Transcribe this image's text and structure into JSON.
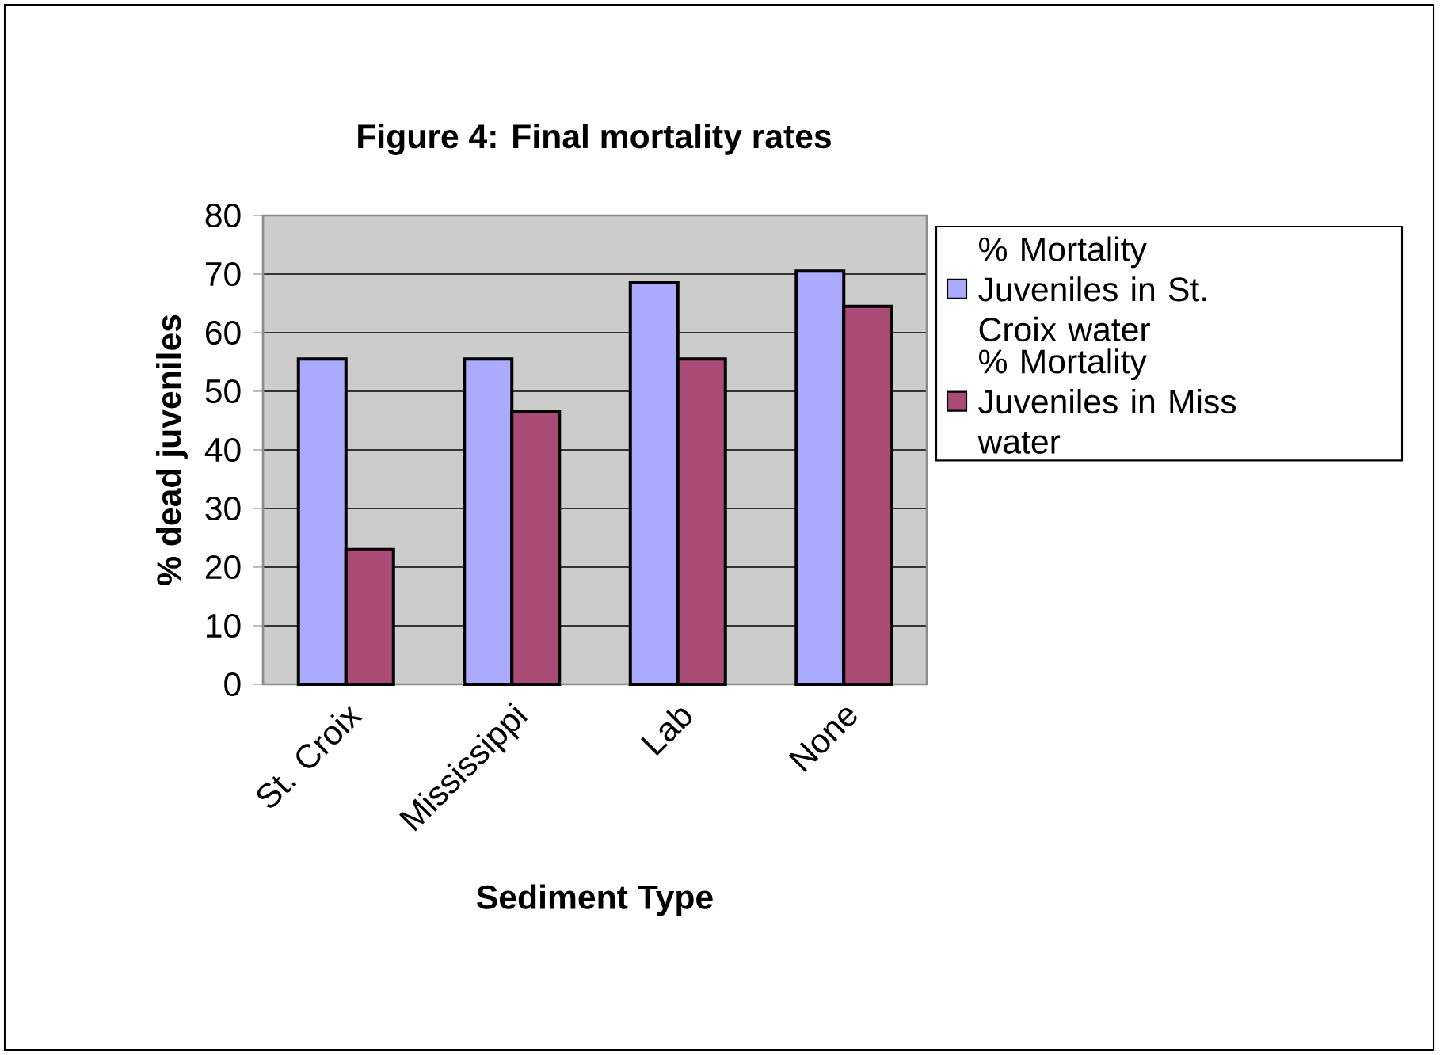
{
  "chart_data": {
    "type": "bar",
    "title": "Figure 4: Final mortality rates",
    "xlabel": "Sediment Type",
    "ylabel": "% dead juveniles",
    "categories": [
      "St. Croix",
      "Mississippi",
      "Lab",
      "None"
    ],
    "series": [
      {
        "name": "% Mortality Juveniles in St. Croix water",
        "color": "#aaaaff",
        "values": [
          55.5,
          55.5,
          68.5,
          70.5
        ]
      },
      {
        "name": "% Mortality Juveniles in Miss water",
        "color": "#aa4a77",
        "values": [
          23,
          46.5,
          55.5,
          64.5
        ]
      }
    ],
    "ylim": [
      0,
      80
    ],
    "yticks": [
      0,
      10,
      20,
      30,
      40,
      50,
      60,
      70,
      80
    ],
    "grid": "y",
    "legend": "right"
  }
}
